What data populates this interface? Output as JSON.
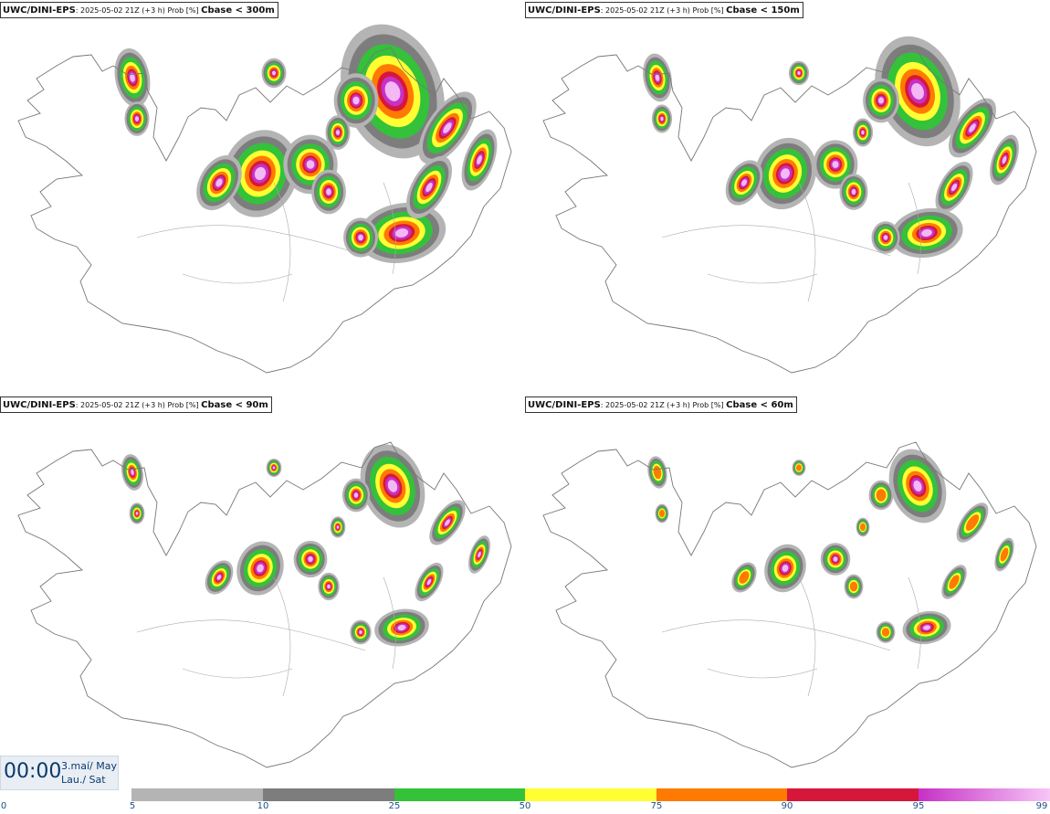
{
  "panels": [
    {
      "model": "UWC/DINI-EPS",
      "run": "2025-05-02 21Z (+3 h) Prob [%]",
      "threshold": "Cbase < 300m"
    },
    {
      "model": "UWC/DINI-EPS",
      "run": "2025-05-02 21Z (+3 h) Prob [%]",
      "threshold": "Cbase < 150m"
    },
    {
      "model": "UWC/DINI-EPS",
      "run": "2025-05-02 21Z (+3 h) Prob [%]",
      "threshold": "Cbase < 90m"
    },
    {
      "model": "UWC/DINI-EPS",
      "run": "2025-05-02 21Z (+3 h) Prob [%]",
      "threshold": "Cbase < 60m"
    }
  ],
  "time": {
    "clock": "00:00",
    "date_line1": "3.maí/ May",
    "date_line2": "Lau./ Sat"
  },
  "legend": {
    "ticks": [
      "0",
      "5",
      "10",
      "25",
      "50",
      "75",
      "90",
      "95",
      "99"
    ],
    "bins": [
      {
        "from": 5,
        "to": 10,
        "color": "#b4b4b4"
      },
      {
        "from": 10,
        "to": 25,
        "color": "#7d7d7d"
      },
      {
        "from": 25,
        "to": 50,
        "color": "#33c23a"
      },
      {
        "from": 50,
        "to": 75,
        "color": "#ffff33"
      },
      {
        "from": 75,
        "to": 90,
        "color": "#ff7a00"
      },
      {
        "from": 90,
        "to": 95,
        "color": "#d6173b"
      },
      {
        "from": 95,
        "to": 99,
        "color": "#c631c6",
        "gradient_to": "#f7c6f7"
      }
    ]
  },
  "colors": {
    "coast": "#777777",
    "cyan_text": "#1d4f86"
  }
}
